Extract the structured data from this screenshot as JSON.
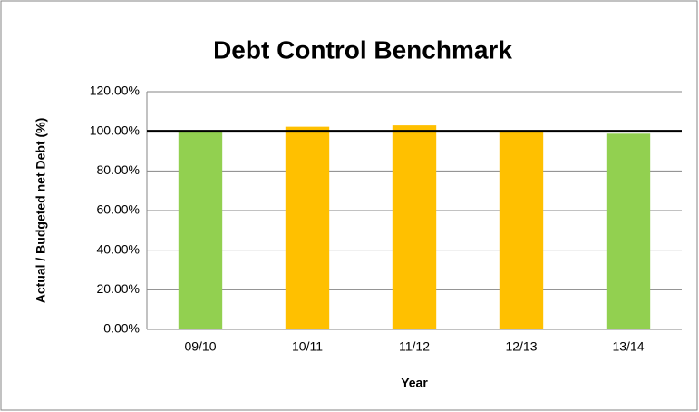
{
  "chart_data": {
    "type": "bar",
    "title": "Debt Control Benchmark",
    "x_label": "Year",
    "y_label": "Actual / Budgeted net Debt (%)",
    "categories": [
      "09/10",
      "10/11",
      "11/12",
      "12/13",
      "13/14"
    ],
    "values": [
      99.5,
      102.3,
      103,
      100.5,
      98.8
    ],
    "colors": [
      "#92d050",
      "#ffc000",
      "#ffc000",
      "#ffc000",
      "#92d050"
    ],
    "reference_line": 100,
    "ylim": [
      0,
      120
    ],
    "yticks": [
      {
        "value": 0,
        "label": "0.00%"
      },
      {
        "value": 20,
        "label": "20.00%"
      },
      {
        "value": 40,
        "label": "40.00%"
      },
      {
        "value": 60,
        "label": "60.00%"
      },
      {
        "value": 80,
        "label": "80.00%"
      },
      {
        "value": 100,
        "label": "100.00%"
      },
      {
        "value": 120,
        "label": "120.00%"
      }
    ],
    "grid": true
  }
}
